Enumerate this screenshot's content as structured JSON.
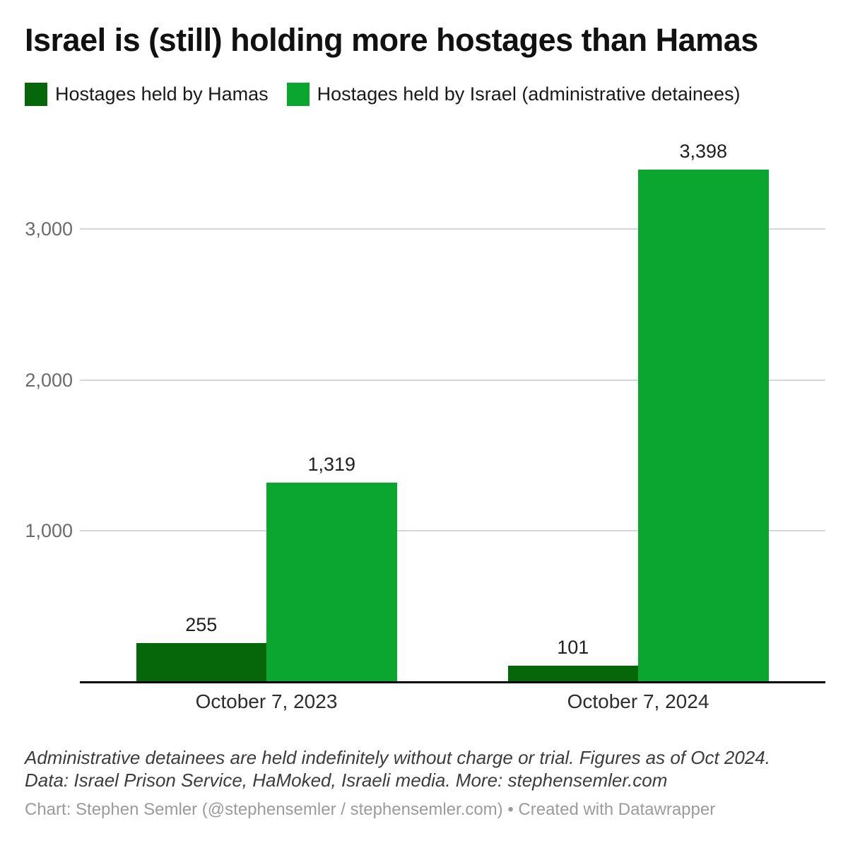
{
  "title": "Israel is (still) holding more hostages than Hamas",
  "legend": [
    {
      "label": "Hostages held by Hamas",
      "color": "#05660a"
    },
    {
      "label": "Hostages held by Israel (administrative detainees)",
      "color": "#0ba62f"
    }
  ],
  "chart_data": {
    "type": "bar",
    "title": "Israel is (still) holding more hostages than Hamas",
    "categories": [
      "October 7, 2023",
      "October 7, 2024"
    ],
    "series": [
      {
        "name": "Hostages held by Hamas",
        "color": "#05660a",
        "values": [
          255,
          101
        ],
        "value_labels": [
          "255",
          "101"
        ]
      },
      {
        "name": "Hostages held by Israel (administrative detainees)",
        "color": "#0ba62f",
        "values": [
          1319,
          3398
        ],
        "value_labels": [
          "1,319",
          "3,398"
        ]
      }
    ],
    "xlabel": "",
    "ylabel": "",
    "ylim": [
      0,
      3600
    ],
    "yticks": [
      {
        "value": 1000,
        "label": "1,000"
      },
      {
        "value": 2000,
        "label": "2,000"
      },
      {
        "value": 3000,
        "label": "3,000"
      }
    ],
    "grid": "horizontal",
    "legend_position": "top"
  },
  "footer": {
    "note_line1": "Administrative detainees are held indefinitely without charge or trial. Figures as of Oct 2024.",
    "note_line2": "Data: Israel Prison Service, HaMoked, Israeli media. More: stephensemler.com",
    "byline": "Chart: Stephen Semler (@stephensemler / stephensemler.com) • Created with Datawrapper"
  },
  "colors": {
    "hamas_bar": "#05660a",
    "israel_bar": "#0ba62f",
    "gridline": "#d6d6d6",
    "axis_line": "#000000",
    "axis_text": "#6b6b6b",
    "background": "#ffffff"
  }
}
